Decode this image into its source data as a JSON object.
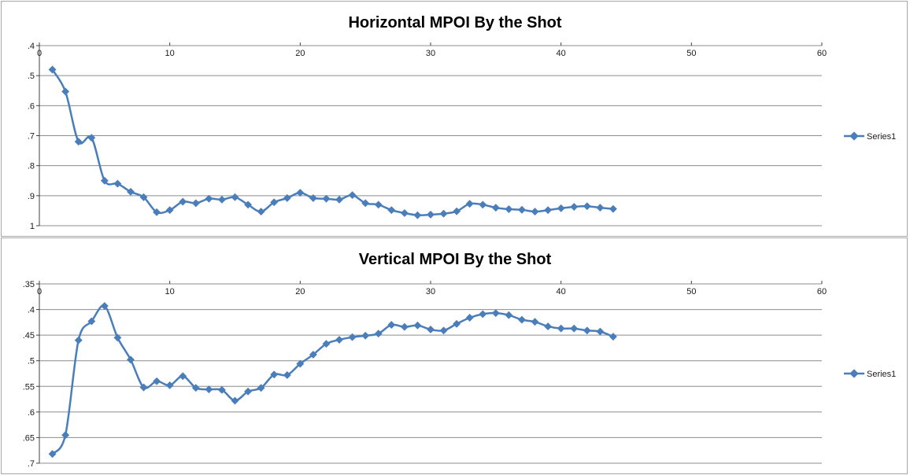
{
  "colors": {
    "series": "#4a7ebb",
    "grid": "#8c8c8c",
    "axis": "#404040"
  },
  "chart_data": [
    {
      "type": "scatter",
      "title": "Horizontal MPOI By the Shot",
      "legend": {
        "position": "right",
        "entries": [
          "Series1"
        ]
      },
      "grid": true,
      "smooth": true,
      "xlim": [
        0,
        60
      ],
      "ylim": [
        0.4,
        1.0
      ],
      "y_reversed": true,
      "x_ticks": [
        0,
        10,
        20,
        30,
        40,
        50,
        60
      ],
      "y_ticks": [
        0.4,
        0.5,
        0.6,
        0.7,
        0.8,
        0.9,
        1.0
      ],
      "y_tick_labels": [
        ".4",
        ".5",
        ".6",
        ".7",
        ".8",
        ".9",
        "1"
      ],
      "series": [
        {
          "name": "Series1",
          "x": [
            1,
            2,
            3,
            4,
            5,
            6,
            7,
            8,
            9,
            10,
            11,
            12,
            13,
            14,
            15,
            16,
            17,
            18,
            19,
            20,
            21,
            22,
            23,
            24,
            25,
            26,
            27,
            28,
            29,
            30,
            31,
            32,
            33,
            34,
            35,
            36,
            37,
            38,
            39,
            40,
            41,
            42,
            43,
            44
          ],
          "y": [
            0.48,
            0.553,
            0.72,
            0.707,
            0.85,
            0.86,
            0.887,
            0.905,
            0.955,
            0.948,
            0.92,
            0.925,
            0.91,
            0.913,
            0.905,
            0.93,
            0.953,
            0.922,
            0.908,
            0.89,
            0.908,
            0.91,
            0.913,
            0.898,
            0.925,
            0.93,
            0.948,
            0.958,
            0.965,
            0.963,
            0.96,
            0.952,
            0.927,
            0.93,
            0.94,
            0.945,
            0.947,
            0.953,
            0.948,
            0.942,
            0.937,
            0.935,
            0.94,
            0.944
          ]
        }
      ]
    },
    {
      "type": "scatter",
      "title": "Vertical MPOI By the Shot",
      "legend": {
        "position": "right",
        "entries": [
          "Series1"
        ]
      },
      "grid": true,
      "smooth": true,
      "xlim": [
        0,
        60
      ],
      "ylim": [
        0.35,
        0.7
      ],
      "y_reversed": true,
      "x_ticks": [
        0,
        10,
        20,
        30,
        40,
        50,
        60
      ],
      "y_ticks": [
        0.35,
        0.4,
        0.45,
        0.5,
        0.55,
        0.6,
        0.65,
        0.7
      ],
      "y_tick_labels": [
        ".35",
        ".4",
        ".45",
        ".5",
        ".55",
        ".6",
        ".65",
        ".7"
      ],
      "series": [
        {
          "name": "Series1",
          "x": [
            1,
            2,
            3,
            4,
            5,
            6,
            7,
            8,
            9,
            10,
            11,
            12,
            13,
            14,
            15,
            16,
            17,
            18,
            19,
            20,
            21,
            22,
            23,
            24,
            25,
            26,
            27,
            28,
            29,
            30,
            31,
            32,
            33,
            34,
            35,
            36,
            37,
            38,
            39,
            40,
            41,
            42,
            43,
            44
          ],
          "y": [
            0.682,
            0.645,
            0.46,
            0.423,
            0.393,
            0.455,
            0.498,
            0.552,
            0.54,
            0.548,
            0.53,
            0.553,
            0.556,
            0.557,
            0.578,
            0.56,
            0.553,
            0.527,
            0.528,
            0.506,
            0.488,
            0.467,
            0.459,
            0.454,
            0.451,
            0.447,
            0.43,
            0.434,
            0.431,
            0.439,
            0.441,
            0.428,
            0.416,
            0.409,
            0.407,
            0.411,
            0.42,
            0.424,
            0.433,
            0.437,
            0.437,
            0.441,
            0.443,
            0.453
          ]
        }
      ]
    }
  ]
}
